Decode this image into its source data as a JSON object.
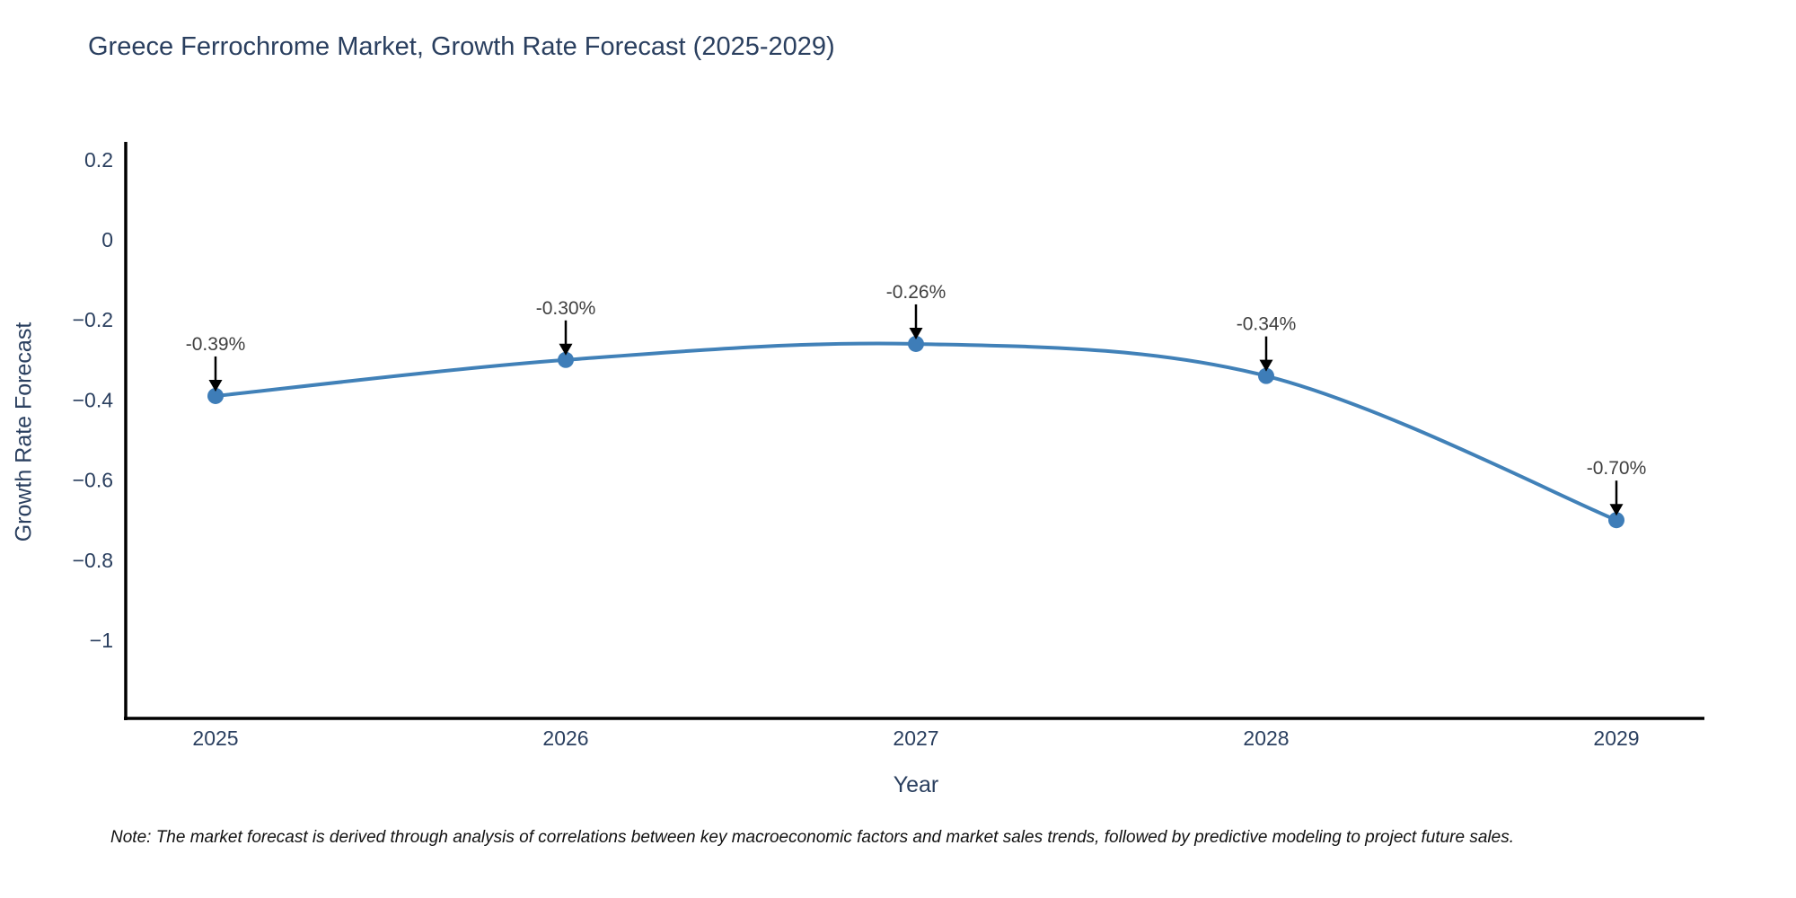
{
  "chart_data": {
    "type": "line",
    "title": "Greece Ferrochrome Market, Growth Rate Forecast (2025-2029)",
    "xlabel": "Year",
    "ylabel": "Growth Rate Forecast",
    "x": [
      2025,
      2026,
      2027,
      2028,
      2029
    ],
    "y": [
      -0.39,
      -0.3,
      -0.26,
      -0.34,
      -0.7
    ],
    "point_labels": [
      "-0.39%",
      "-0.30%",
      "-0.26%",
      "-0.34%",
      "-0.70%"
    ],
    "xtick_labels": [
      "2025",
      "2026",
      "2027",
      "2028",
      "2029"
    ],
    "yticks": [
      0.2,
      0,
      -0.2,
      -0.4,
      -0.6,
      -0.8,
      -1
    ],
    "ytick_labels": [
      "0.2",
      "0",
      "−0.2",
      "−0.4",
      "−0.6",
      "−0.8",
      "−1"
    ],
    "ylim": [
      -1.2,
      0.24
    ],
    "grid": false,
    "legend": "none",
    "line_shape": "spline",
    "marker": "circle",
    "annotation_arrow": "down-arrow",
    "note": "Note: The market forecast is derived through analysis of correlations between key macroeconomic factors and market sales trends, followed by predictive modeling to project future sales.",
    "colors": {
      "line": "#4181b8",
      "marker": "#3e7db8",
      "axis": "#000000",
      "tick_text": "#2a3f5f",
      "title_text": "#2a3f5f",
      "annotation_text": "#404040",
      "arrow": "#000000",
      "background": "#ffffff"
    }
  }
}
